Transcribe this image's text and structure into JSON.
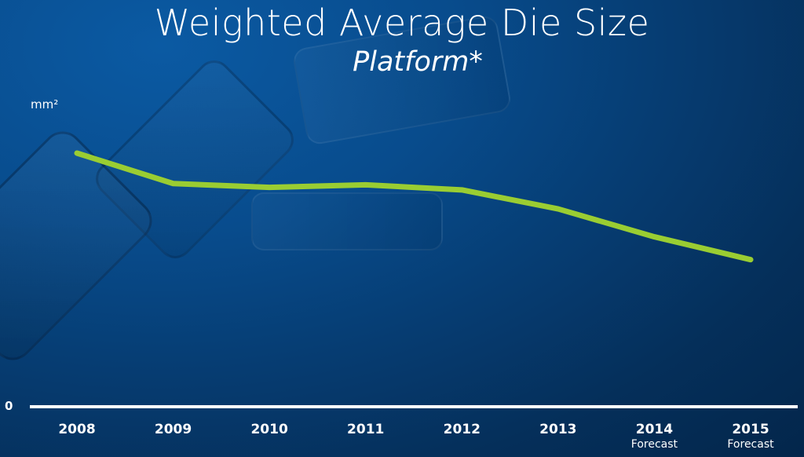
{
  "slide": {
    "title": "Weighted Average Die Size",
    "subtitle": "Platform*"
  },
  "colors": {
    "line": "#9acd32",
    "axis": "#ffffff",
    "background": "#063d73"
  },
  "chart_data": {
    "type": "line",
    "ylabel": "mm²",
    "ytick_labels": [
      "0"
    ],
    "ylim": [
      0,
      100
    ],
    "grid": false,
    "legend": "none",
    "categories": [
      "2008",
      "2009",
      "2010",
      "2011",
      "2012",
      "2013",
      "2014",
      "2015"
    ],
    "category_notes": [
      "",
      "",
      "",
      "",
      "",
      "",
      "Forecast",
      "Forecast"
    ],
    "series": [
      {
        "values": [
          100,
          88,
          86.5,
          87.5,
          85.5,
          78,
          67,
          58
        ]
      }
    ]
  }
}
